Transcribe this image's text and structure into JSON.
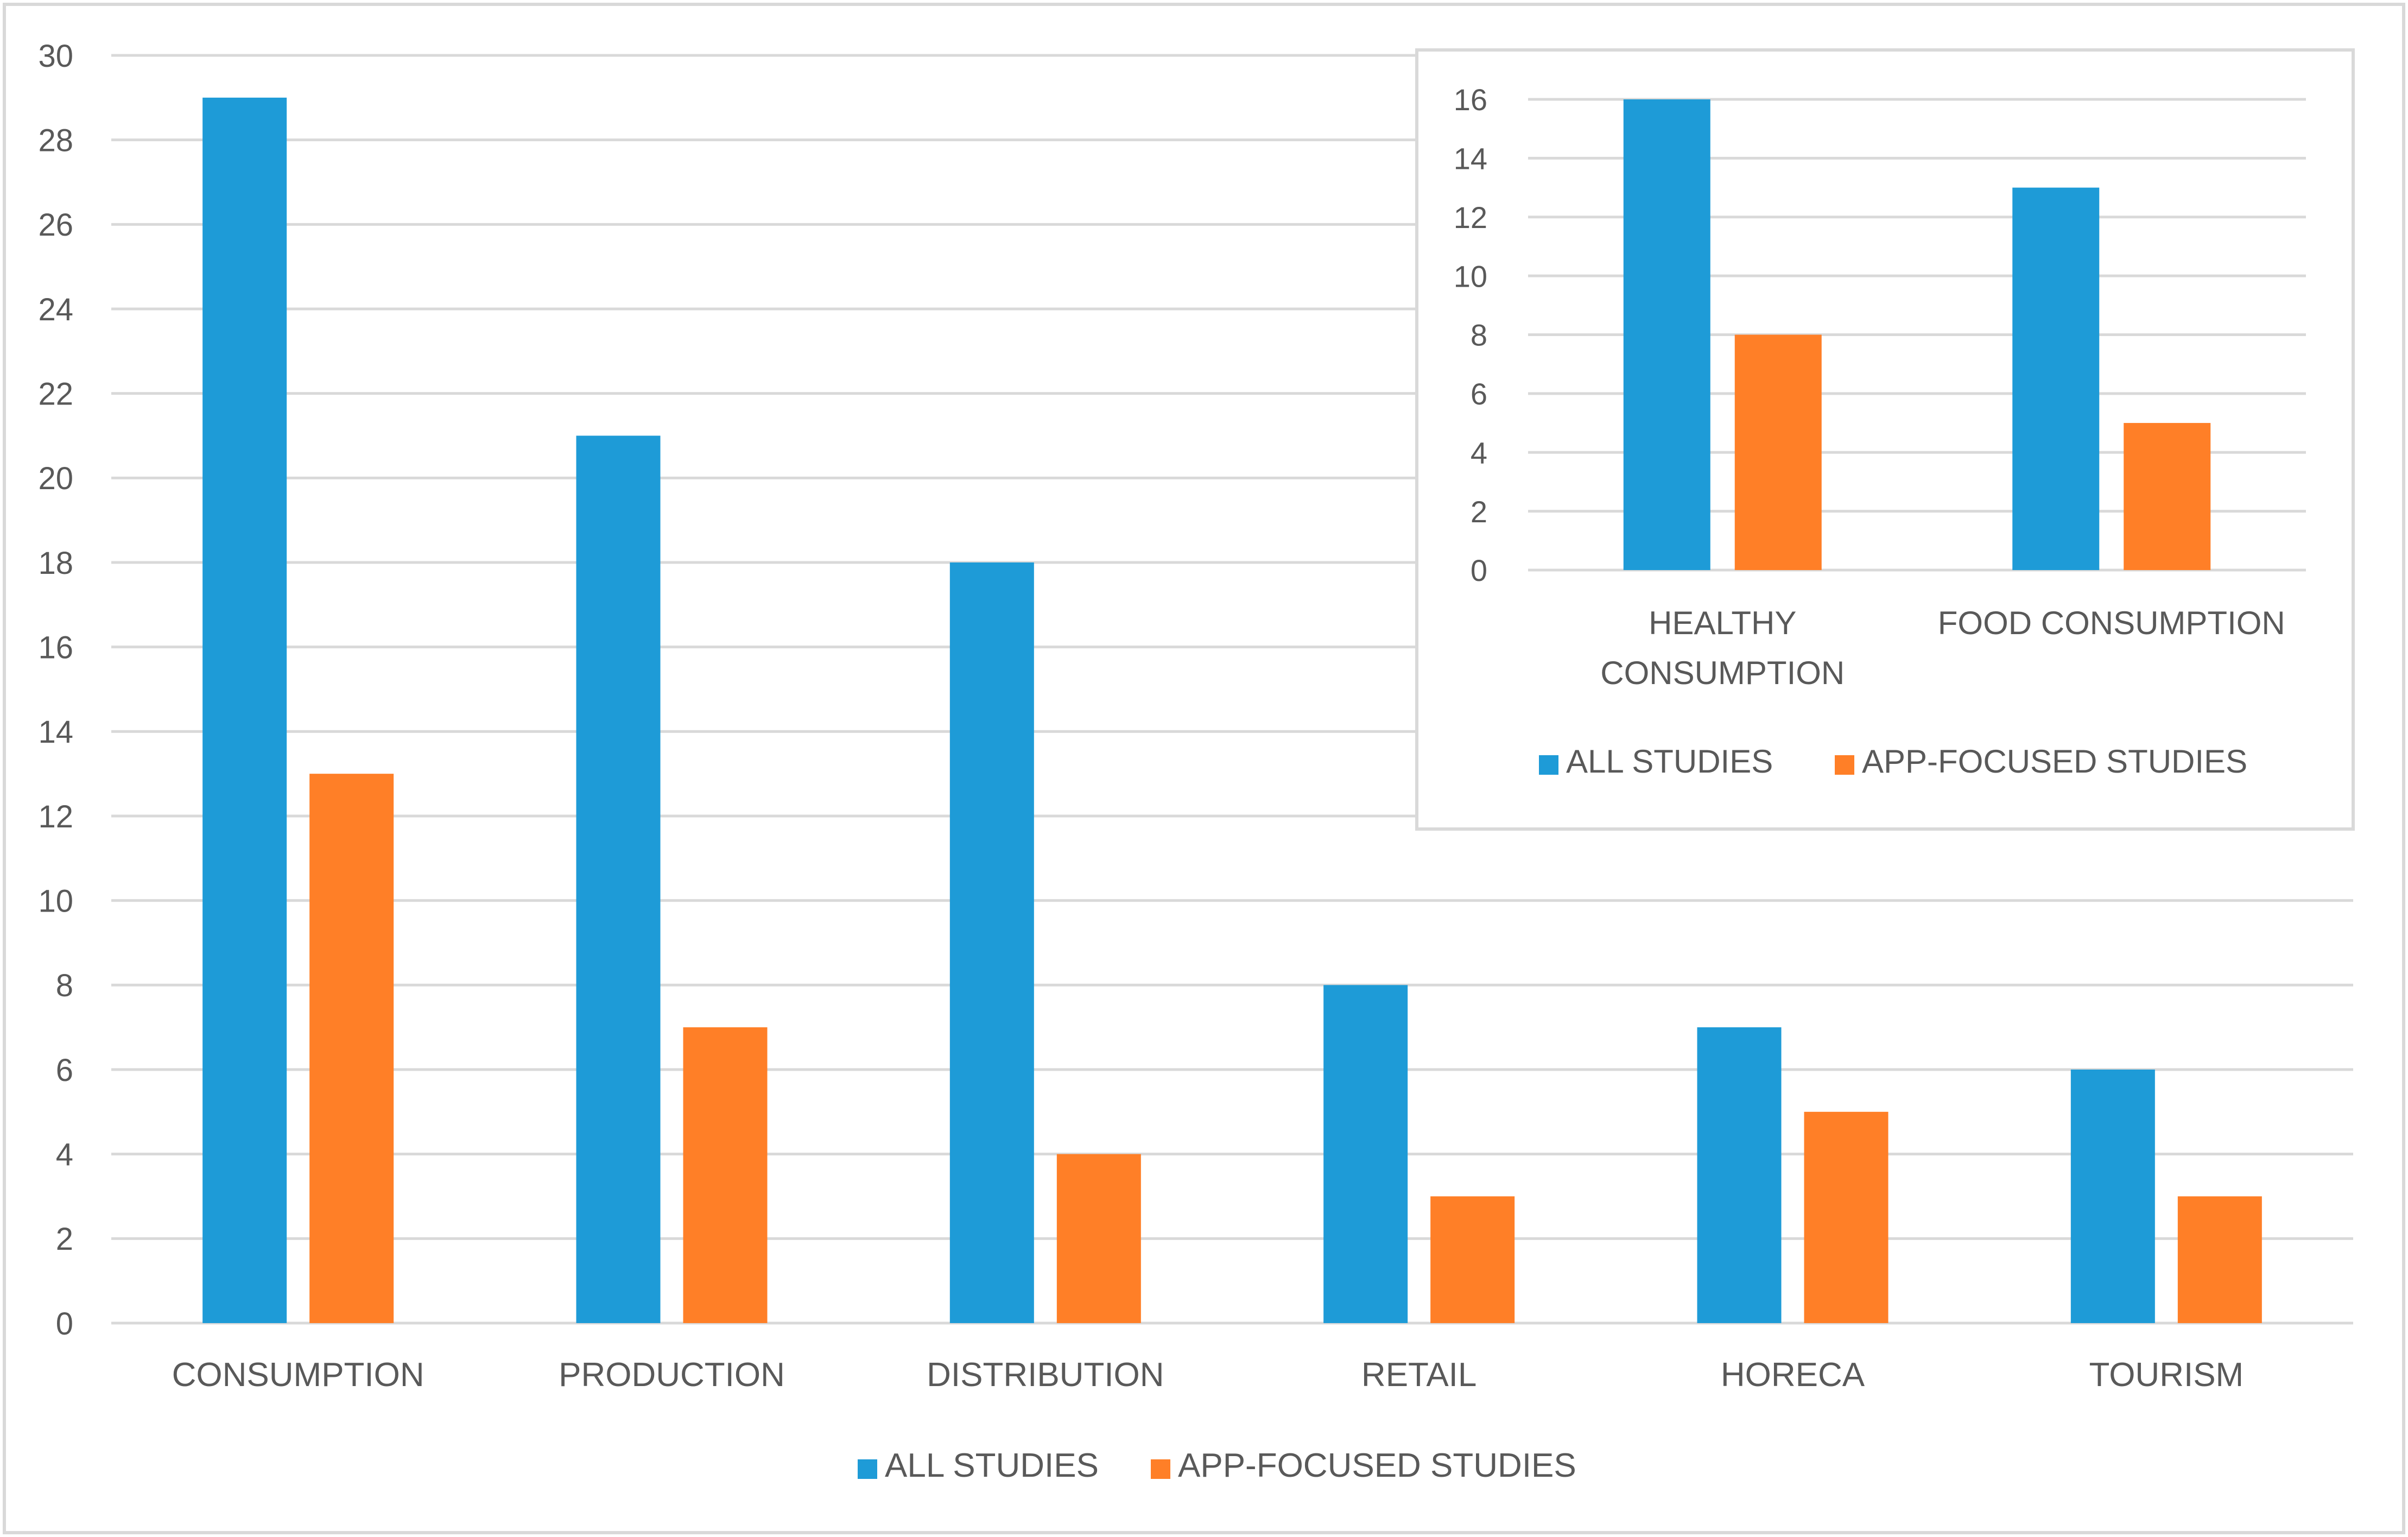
{
  "colors": {
    "all_studies": "#1E9BD7",
    "app_focused": "#FF7F27",
    "gridline": "#D9D9D9",
    "axis_text": "#595959",
    "border": "#D9D9D9"
  },
  "chart_data": [
    {
      "type": "bar",
      "title": "",
      "xlabel": "",
      "ylabel": "",
      "categories": [
        "CONSUMPTION",
        "PRODUCTION",
        "DISTRIBUTION",
        "RETAIL",
        "HORECA",
        "TOURISM"
      ],
      "series": [
        {
          "name": "ALL STUDIES",
          "values": [
            29,
            21,
            18,
            8,
            7,
            6
          ]
        },
        {
          "name": "APP-FOCUSED STUDIES",
          "values": [
            13,
            7,
            4,
            3,
            5,
            3
          ]
        }
      ],
      "ylim": [
        0,
        30
      ],
      "yticks": [
        "0",
        "2",
        "4",
        "6",
        "8",
        "10",
        "12",
        "14",
        "16",
        "18",
        "20",
        "22",
        "24",
        "26",
        "28",
        "30"
      ],
      "grid": true,
      "legend": "bottom"
    },
    {
      "type": "bar",
      "title": "",
      "xlabel": "",
      "ylabel": "",
      "categories": [
        [
          "HEALTHY",
          "CONSUMPTION"
        ],
        [
          "FOOD CONSUMPTION"
        ]
      ],
      "series": [
        {
          "name": "ALL STUDIES",
          "values": [
            16,
            13
          ]
        },
        {
          "name": "APP-FOCUSED STUDIES",
          "values": [
            8,
            5
          ]
        }
      ],
      "ylim": [
        0,
        16
      ],
      "yticks": [
        "0",
        "2",
        "4",
        "6",
        "8",
        "10",
        "12",
        "14",
        "16"
      ],
      "grid": true,
      "legend": "bottom",
      "inset": "top-right"
    }
  ]
}
